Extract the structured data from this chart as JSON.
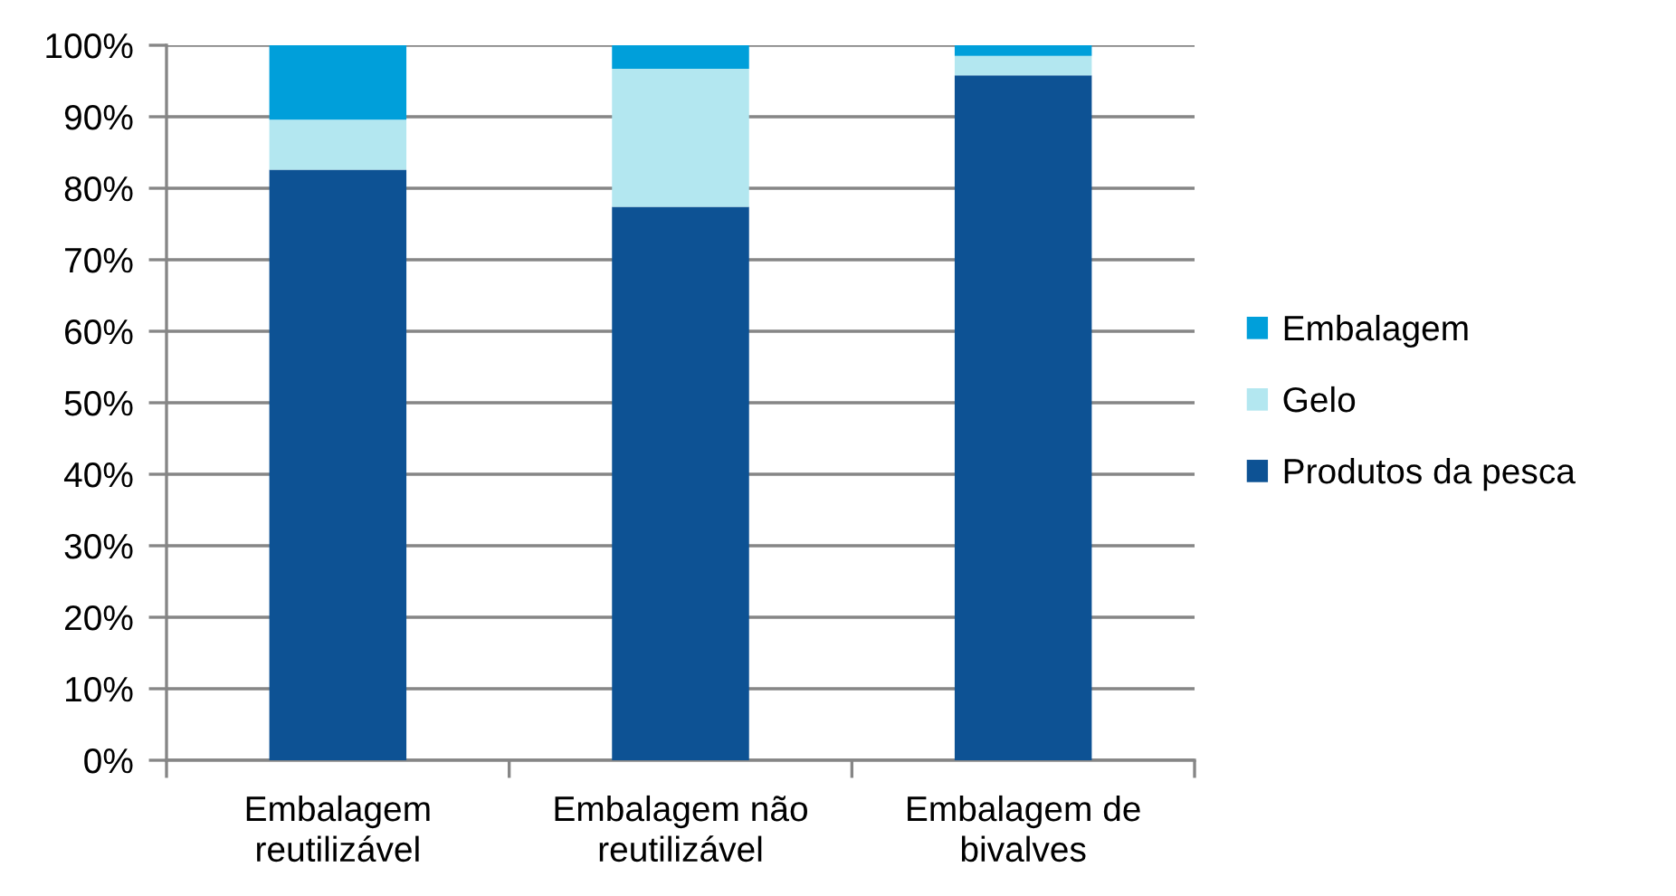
{
  "chart_data": {
    "type": "bar",
    "stacked": true,
    "categories": [
      "Embalagem\nreutilizável",
      "Embalagem não\nreutilizável",
      "Embalagem de\nbivalves"
    ],
    "series": [
      {
        "name": "Produtos da pesca",
        "color": "#0d5294",
        "values": [
          82.6,
          77.4,
          95.8
        ]
      },
      {
        "name": "Gelo",
        "color": "#b3e7f0",
        "values": [
          7.0,
          19.3,
          2.7
        ]
      },
      {
        "name": "Embalagem",
        "color": "#009fda",
        "values": [
          10.4,
          3.3,
          1.5
        ]
      }
    ],
    "ylim": [
      0,
      100
    ],
    "yticks": [
      {
        "value": 0,
        "label": "0%"
      },
      {
        "value": 10,
        "label": "10%"
      },
      {
        "value": 20,
        "label": "20%"
      },
      {
        "value": 30,
        "label": "30%"
      },
      {
        "value": 40,
        "label": "40%"
      },
      {
        "value": 50,
        "label": "50%"
      },
      {
        "value": 60,
        "label": "60%"
      },
      {
        "value": 70,
        "label": "70%"
      },
      {
        "value": 80,
        "label": "80%"
      },
      {
        "value": 90,
        "label": "90%"
      },
      {
        "value": 100,
        "label": "100%"
      }
    ],
    "grid": "y",
    "legend": "right"
  }
}
